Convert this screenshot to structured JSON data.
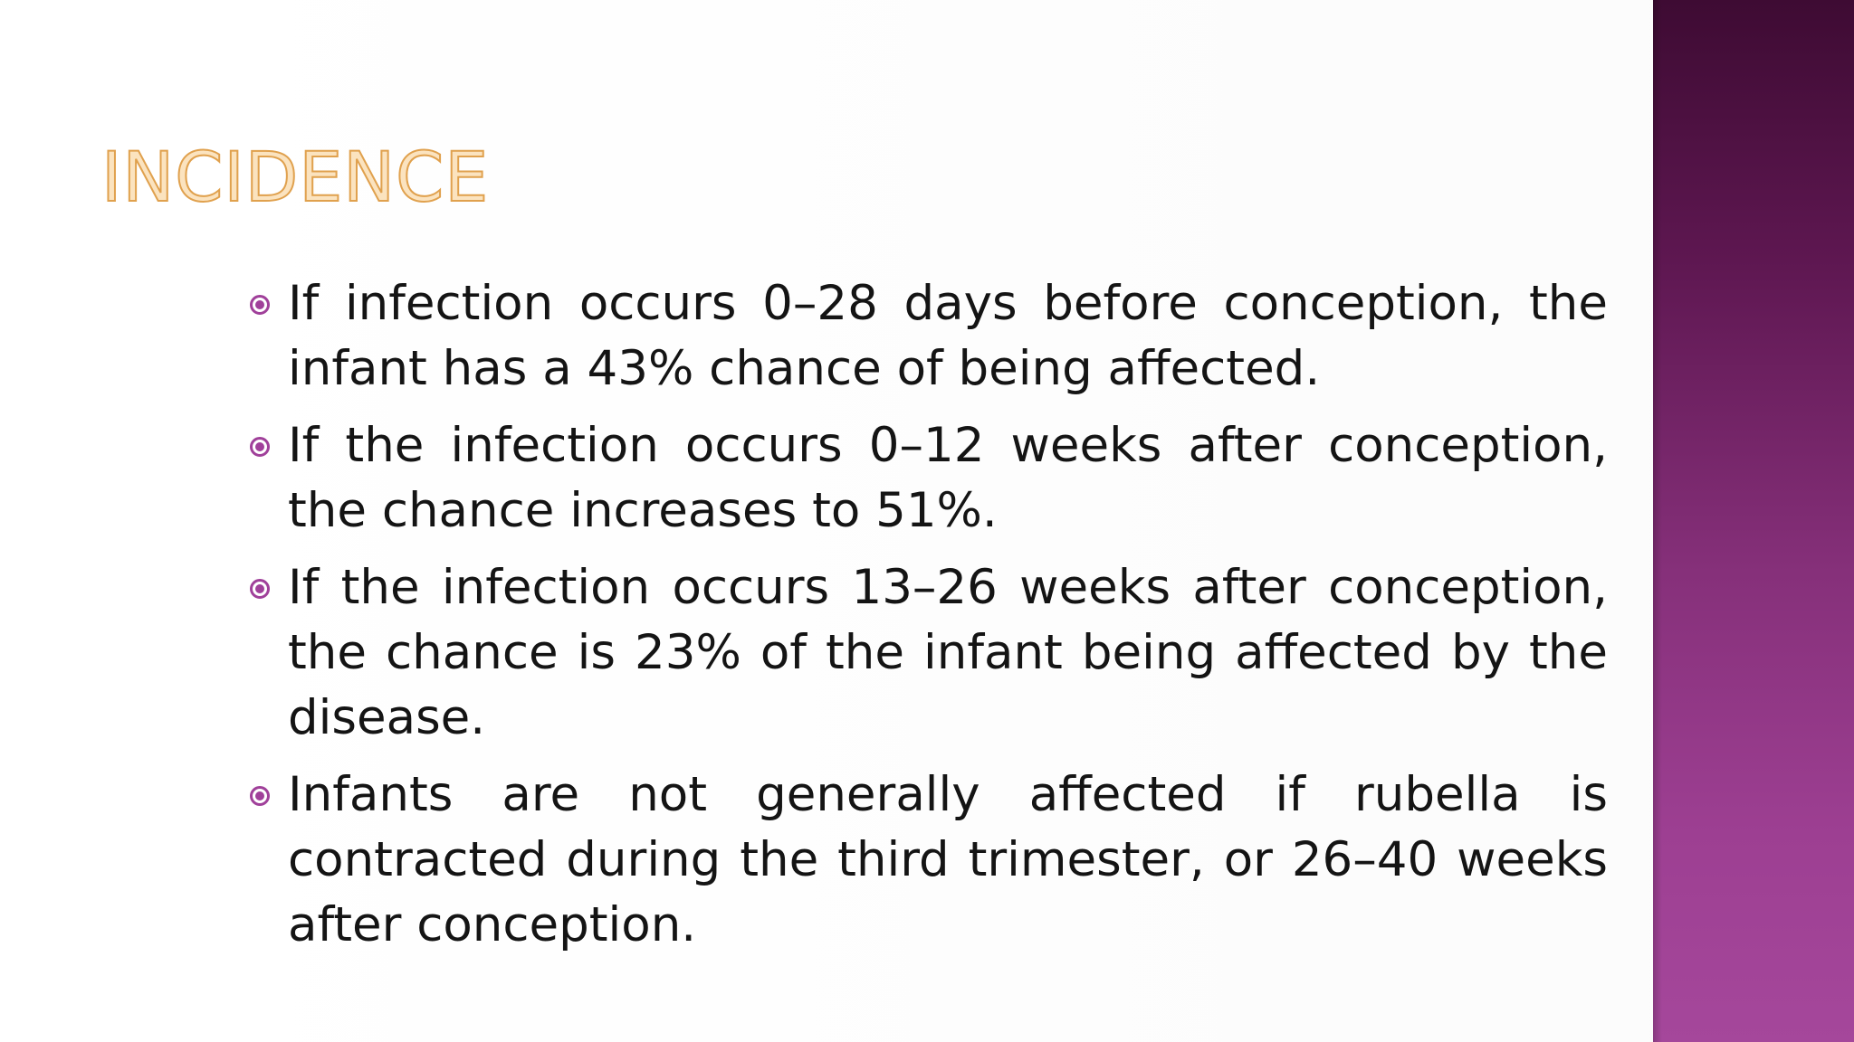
{
  "slide": {
    "title": "INCIDENCE",
    "bullets": [
      "If infection occurs 0–28 days before conception, the infant has a 43% chance of being affected.",
      "If the infection occurs 0–12 weeks after conception, the chance increases to 51%.",
      "If the infection occurs 13–26 weeks after conception, the chance is 23% of the infant being affected by the disease.",
      "Infants are not generally affected if rubella is contracted during the third trimester, or 26–40 weeks after conception."
    ],
    "bullet_icon": "circle-dot-bullet-icon",
    "colors": {
      "title_fill": "#fbe3bf",
      "title_outline": "#e0a14e",
      "bullet": "#a0409a",
      "side_panel_top": "#3e0b33",
      "side_panel_bottom": "#a5479b",
      "body_text": "#141414"
    }
  }
}
